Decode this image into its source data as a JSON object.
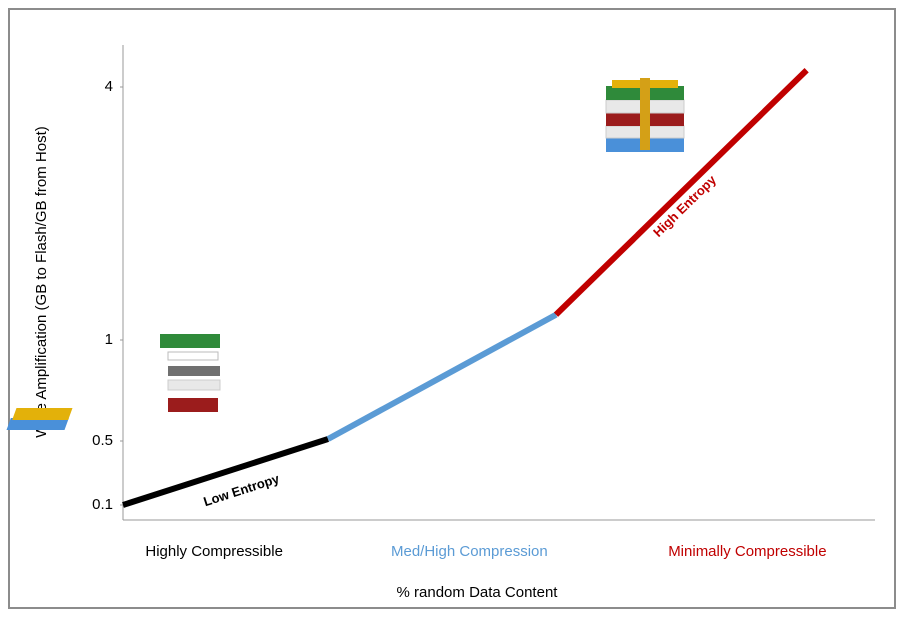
{
  "chart_data": {
    "type": "line",
    "y_label": "Write Amplification (GB to Flash/GB from Host)",
    "x_label": "% random Data Content",
    "y_scale": "piecewise",
    "ylim": [
      0,
      4.5
    ],
    "yticks": [
      0.1,
      0.5,
      1,
      4
    ],
    "xlim": [
      0,
      3.3
    ],
    "xticks": [
      {
        "value": 0.4,
        "label": "Highly Compressible"
      },
      {
        "value": 1.52,
        "label": "Med/High Compression"
      },
      {
        "value": 2.74,
        "label": "Minimally Compressible"
      }
    ],
    "grid": false,
    "series": [
      {
        "name": "Low Entropy",
        "color": "#000000",
        "x": [
          0,
          0.9
        ],
        "values": [
          0.1,
          0.51
        ]
      },
      {
        "color": "#5b9bd5",
        "x": [
          0.9,
          1.9
        ],
        "values": [
          0.51,
          1.3
        ]
      },
      {
        "name": "High Entropy",
        "color": "#c00000",
        "x": [
          1.9,
          3
        ],
        "values": [
          1.3,
          4.2
        ]
      }
    ]
  }
}
